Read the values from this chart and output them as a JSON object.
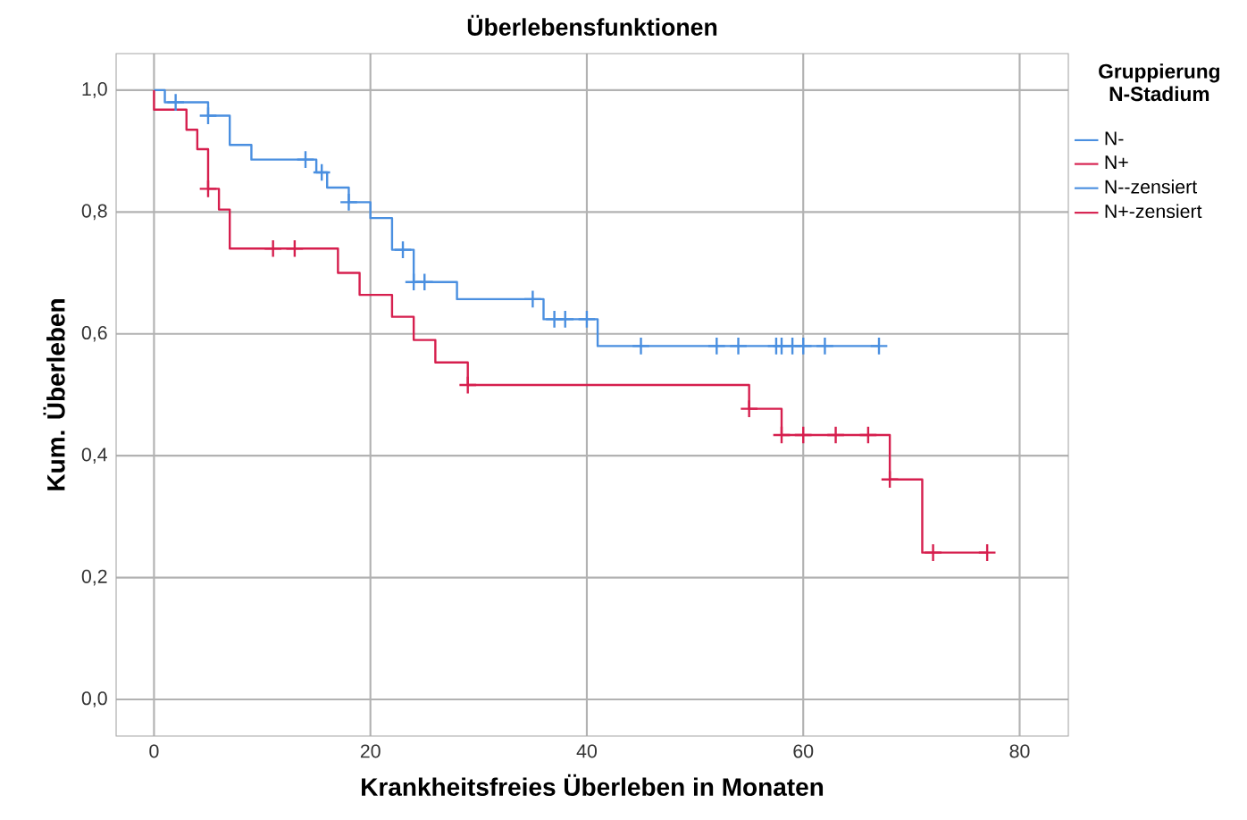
{
  "chart_data": {
    "type": "step",
    "title": "Überlebensfunktionen",
    "xlabel": "Krankheitsfreies Überleben in Monaten",
    "ylabel": "Kum. Überleben",
    "legend_title": "Gruppierung N-Stadium",
    "xlim": [
      -3.5,
      84.5
    ],
    "ylim": [
      -0.06,
      1.06
    ],
    "xticks": [
      0,
      20,
      40,
      60,
      80
    ],
    "yticks": [
      {
        "value": 0,
        "label": "0,0"
      },
      {
        "value": 0.2,
        "label": "0,2"
      },
      {
        "value": 0.4,
        "label": "0,4"
      },
      {
        "value": 0.6,
        "label": "0,6"
      },
      {
        "value": 0.8,
        "label": "0,8"
      },
      {
        "value": 1.0,
        "label": "1,0"
      }
    ],
    "grid": true,
    "legend": "top right",
    "series": [
      {
        "name": "N-",
        "color": "#4a8fe0",
        "x": [
          0,
          1,
          5,
          7,
          9,
          15,
          16,
          18,
          20,
          22,
          24,
          28,
          36,
          41,
          67
        ],
        "values": [
          1,
          0.98,
          0.958,
          0.91,
          0.886,
          0.865,
          0.84,
          0.816,
          0.79,
          0.738,
          0.685,
          0.657,
          0.624,
          0.58,
          0.58
        ]
      },
      {
        "name": "N+",
        "color": "#d61f4e",
        "x": [
          0,
          0,
          3,
          4,
          5,
          6,
          7,
          17,
          19,
          22,
          24,
          26,
          29,
          55,
          58,
          68,
          71,
          77
        ],
        "values": [
          1,
          0.968,
          0.935,
          0.903,
          0.838,
          0.804,
          0.74,
          0.7,
          0.664,
          0.628,
          0.59,
          0.553,
          0.516,
          0.477,
          0.434,
          0.361,
          0.241,
          0.241
        ]
      },
      {
        "name": "N--zensiert",
        "type": "scatter",
        "marker": "cross",
        "color": "#4a8fe0",
        "x": [
          2,
          5,
          14,
          15.5,
          18,
          23,
          24,
          25,
          35,
          37,
          38,
          40,
          45,
          52,
          54,
          57.5,
          58,
          59,
          60,
          62,
          67
        ],
        "values": [
          0.98,
          0.958,
          0.886,
          0.865,
          0.816,
          0.738,
          0.685,
          0.685,
          0.657,
          0.624,
          0.624,
          0.624,
          0.58,
          0.58,
          0.58,
          0.58,
          0.58,
          0.58,
          0.58,
          0.58,
          0.58
        ]
      },
      {
        "name": "N+-zensiert",
        "type": "scatter",
        "marker": "cross",
        "color": "#d61f4e",
        "x": [
          5,
          11,
          13,
          29,
          55,
          58,
          60,
          63,
          66,
          68,
          72,
          77
        ],
        "values": [
          0.838,
          0.74,
          0.74,
          0.516,
          0.477,
          0.434,
          0.434,
          0.434,
          0.434,
          0.361,
          0.241,
          0.241
        ]
      }
    ]
  }
}
